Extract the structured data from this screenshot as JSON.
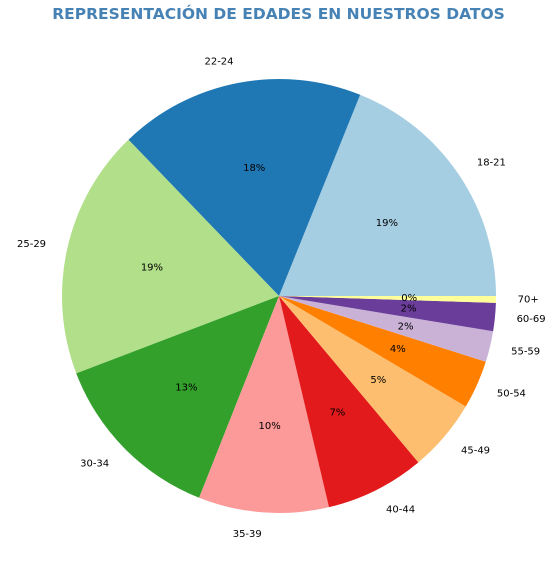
{
  "chart_data": {
    "type": "pie",
    "title": "REPRESENTACIÓN DE EDADES EN NUESTROS DATOS",
    "start_angle_deg": 0,
    "direction": "counterclockwise",
    "slices": [
      {
        "label": "18-21",
        "value": 18.9,
        "pct_label": "19%",
        "color": "#a6cee3"
      },
      {
        "label": "22-24",
        "value": 18.3,
        "pct_label": "18%",
        "color": "#1f78b4"
      },
      {
        "label": "25-29",
        "value": 18.6,
        "pct_label": "19%",
        "color": "#b2df8a"
      },
      {
        "label": "30-34",
        "value": 13.2,
        "pct_label": "13%",
        "color": "#33a02c"
      },
      {
        "label": "35-39",
        "value": 9.7,
        "pct_label": "10%",
        "color": "#fb9a99"
      },
      {
        "label": "40-44",
        "value": 7.4,
        "pct_label": "7%",
        "color": "#e31a1c"
      },
      {
        "label": "45-49",
        "value": 5.4,
        "pct_label": "5%",
        "color": "#fdbf6f"
      },
      {
        "label": "50-54",
        "value": 3.6,
        "pct_label": "4%",
        "color": "#ff7f00"
      },
      {
        "label": "55-59",
        "value": 2.3,
        "pct_label": "2%",
        "color": "#cab2d6"
      },
      {
        "label": "60-69",
        "value": 2.1,
        "pct_label": "2%",
        "color": "#6a3d9a"
      },
      {
        "label": "70+",
        "value": 0.5,
        "pct_label": "0%",
        "color": "#ffff99"
      }
    ]
  }
}
